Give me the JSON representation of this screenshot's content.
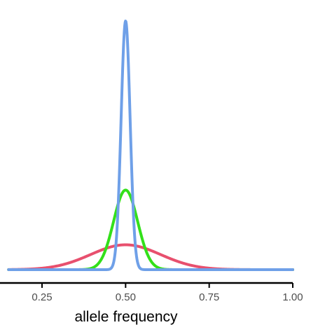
{
  "chart_data": {
    "type": "line",
    "title": "",
    "xlabel": "allele frequency",
    "ylabel": "",
    "xlim": [
      0.15,
      1.0
    ],
    "ylim": [
      0,
      1.0
    ],
    "grid": false,
    "legend": "none",
    "x_ticks": [
      {
        "value": 0.25,
        "label": "0.25"
      },
      {
        "value": 0.5,
        "label": "0.50"
      },
      {
        "value": 0.75,
        "label": "0.75"
      },
      {
        "value": 1.0,
        "label": "1.00"
      }
    ],
    "series": [
      {
        "color": "#E8506E",
        "mean": 0.5,
        "sd": 0.105,
        "peak": 0.1
      },
      {
        "color": "#33E01A",
        "mean": 0.5,
        "sd": 0.036,
        "peak": 0.32
      },
      {
        "color": "#6FA0E8",
        "mean": 0.5,
        "sd": 0.0135,
        "peak": 1.0
      }
    ]
  }
}
